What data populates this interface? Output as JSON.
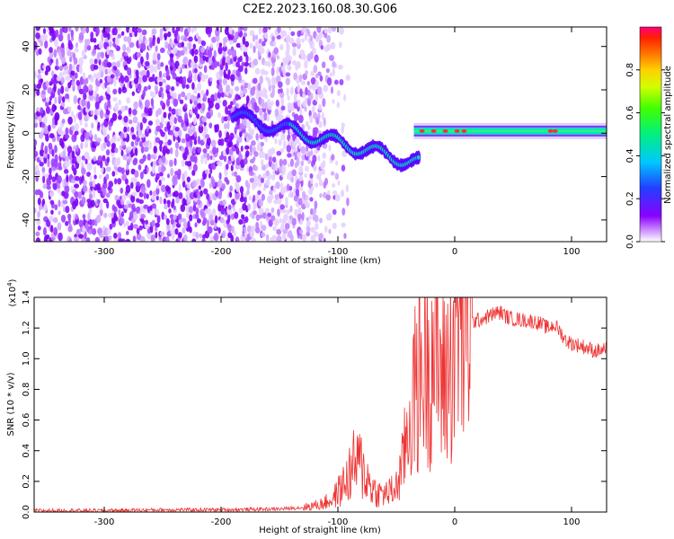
{
  "title": "C2E2.2023.160.08.30.G06",
  "chart_data": [
    {
      "type": "heatmap",
      "xlabel": "Height of straight line (km)",
      "ylabel": "Frequency (Hz)",
      "xlim": [
        -360,
        130
      ],
      "ylim": [
        -50,
        49
      ],
      "xticks": [
        -300,
        -200,
        -100,
        0,
        100
      ],
      "yticks": [
        -40,
        -20,
        0,
        20,
        40
      ],
      "colorbar": {
        "label": "Normalized spectral amplitude",
        "range": [
          0,
          1
        ],
        "ticks": [
          0.0,
          0.2,
          0.4,
          0.6,
          0.8
        ]
      },
      "features": {
        "noise_region_x": [
          -360,
          -130
        ],
        "descending_streak": {
          "x": [
            -190,
            -30
          ],
          "freq_start": 8,
          "freq_end": -14
        },
        "carrier_band": {
          "x": [
            -35,
            130
          ],
          "freq": 1
        }
      }
    },
    {
      "type": "line",
      "xlabel": "Height of straight line (km)",
      "ylabel": "SNR (10 * v/v)",
      "yscale_label": "(x10",
      "yscale_exp": "4",
      "yscale_close": ")",
      "xlim": [
        -360,
        130
      ],
      "ylim": [
        0,
        1.4
      ],
      "xticks": [
        -300,
        -200,
        -100,
        0,
        100
      ],
      "yticks": [
        0.0,
        0.2,
        0.4,
        0.6,
        0.8,
        1.0,
        1.2,
        1.4
      ],
      "series_color": "#ee3333",
      "series": [
        {
          "name": "SNR",
          "x": [
            -360,
            -300,
            -250,
            -200,
            -150,
            -130,
            -115,
            -105,
            -95,
            -85,
            -80,
            -75,
            -70,
            -65,
            -60,
            -55,
            -50,
            -45,
            -40,
            -35,
            -30,
            -25,
            -20,
            -17,
            -15,
            -10,
            -5,
            0,
            5,
            10,
            15,
            20,
            30,
            35,
            40,
            45,
            50,
            60,
            70,
            80,
            85,
            90,
            95,
            100,
            110,
            120,
            130
          ],
          "values": [
            0.01,
            0.01,
            0.015,
            0.015,
            0.02,
            0.03,
            0.05,
            0.08,
            0.18,
            0.32,
            0.3,
            0.22,
            0.15,
            0.12,
            0.12,
            0.13,
            0.16,
            0.3,
            0.55,
            0.75,
            0.9,
            1.0,
            1.05,
            1.12,
            1.0,
            0.85,
            0.95,
            1.15,
            1.2,
            1.22,
            1.24,
            1.25,
            1.28,
            1.3,
            1.3,
            1.27,
            1.26,
            1.25,
            1.24,
            1.2,
            1.22,
            1.18,
            1.12,
            1.1,
            1.08,
            1.05,
            1.06
          ]
        }
      ]
    }
  ]
}
